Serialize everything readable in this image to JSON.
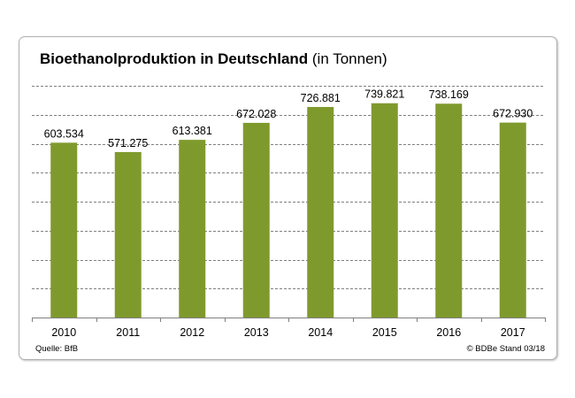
{
  "title": {
    "main": "Bioethanolproduktion in Deutschland",
    "suffix": " (in Tonnen)"
  },
  "source": "Quelle:  BfB",
  "copyright": "© BDBe Stand  03/18",
  "colors": {
    "bar": "#7f9a2c",
    "grid": "#808080"
  },
  "chart_data": {
    "type": "bar",
    "title": "Bioethanolproduktion in Deutschland (in Tonnen)",
    "categories": [
      "2010",
      "2011",
      "2012",
      "2013",
      "2014",
      "2015",
      "2016",
      "2017"
    ],
    "values": [
      603534,
      571275,
      613381,
      672028,
      726881,
      739821,
      738169,
      672930
    ],
    "value_labels": [
      "603.534",
      "571.275",
      "613.381",
      "672.028",
      "726.881",
      "739.821",
      "738.169",
      "672.930"
    ],
    "xlabel": "",
    "ylabel": "",
    "ylim": [
      0,
      800000
    ],
    "grid": true,
    "legend": "none"
  }
}
